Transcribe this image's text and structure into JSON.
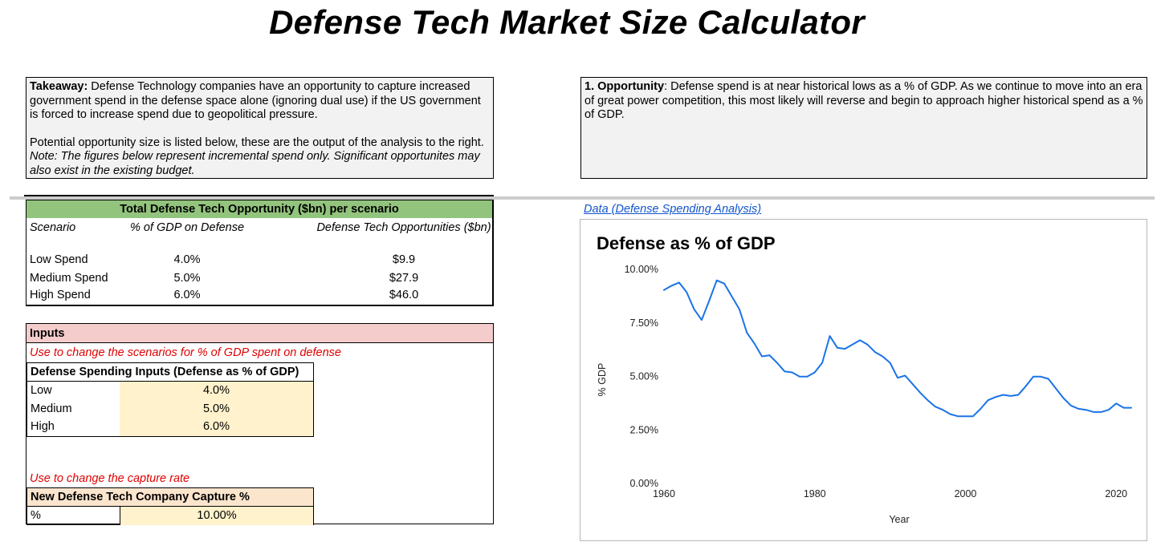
{
  "title": "Defense Tech Market Size Calculator",
  "takeaway": {
    "label": "Takeaway:",
    "text": " Defense Technology companies have an opportunity to capture increased government spend in the defense space alone (ignoring dual use) if the US government is forced to increase spend due to geopolitical pressure.",
    "para2": "Potential opportunity size is listed below, these are the output of the analysis to the right.",
    "note": "Note: The figures below represent incremental spend only. Significant opportunites may also exist in the existing budget."
  },
  "opportunity": {
    "label": "1. Opportunity",
    "text": ": Defense spend is at near historical lows as a % of GDP. As we continue to move into an era of great power competition, this most likely will reverse and begin to approach higher historical spend as a % of GDP."
  },
  "opportunity_table": {
    "header": "Total Defense Tech Opportunity ($bn) per scenario",
    "columns": [
      "Scenario",
      "% of GDP on Defense",
      "Defense Tech Opportunities ($bn)"
    ],
    "rows": [
      {
        "scenario": "Low Spend",
        "pct": "4.0%",
        "opp": "$9.9"
      },
      {
        "scenario": "Medium Spend",
        "pct": "5.0%",
        "opp": "$27.9"
      },
      {
        "scenario": "High Spend",
        "pct": "6.0%",
        "opp": "$46.0"
      }
    ]
  },
  "inputs": {
    "header": "Inputs",
    "note1": "Use to change the scenarios for % of GDP spent on defense",
    "spending_header": "Defense Spending Inputs (Defense as % of GDP)",
    "spending_rows": [
      {
        "label": "Low",
        "value": "4.0%"
      },
      {
        "label": "Medium",
        "value": "5.0%"
      },
      {
        "label": "High",
        "value": "6.0%"
      }
    ],
    "note2": "Use to change the capture rate",
    "capture_header": "New Defense Tech Company Capture %",
    "capture_label": "%",
    "capture_value": "10.00%"
  },
  "data_link": "Data (Defense Spending Analysis)",
  "colors": {
    "header_green": "#93c47d",
    "inputs_pink": "#f4cccc",
    "input_yellow": "#fff2cc",
    "red_note": "#e00000",
    "line_blue": "#1a73e8",
    "link_blue": "#1155cc"
  },
  "chart_data": {
    "type": "line",
    "title": "Defense as % of GDP",
    "xlabel": "Year",
    "ylabel": "% GDP",
    "xlim": [
      1960,
      2022
    ],
    "ylim": [
      0,
      10
    ],
    "x_ticks": [
      "1960",
      "1980",
      "2000",
      "2020"
    ],
    "y_ticks": [
      "0.00%",
      "2.50%",
      "5.00%",
      "7.50%",
      "10.00%"
    ],
    "grid": false,
    "series": [
      {
        "x": [
          1960,
          1961,
          1962,
          1963,
          1964,
          1965,
          1966,
          1967,
          1968,
          1969,
          1970,
          1971,
          1972,
          1973,
          1974,
          1975,
          1976,
          1977,
          1978,
          1979,
          1980,
          1981,
          1982,
          1983,
          1984,
          1985,
          1986,
          1987,
          1988,
          1989,
          1990,
          1991,
          1992,
          1993,
          1994,
          1995,
          1996,
          1997,
          1998,
          1999,
          2000,
          2001,
          2002,
          2003,
          2004,
          2005,
          2006,
          2007,
          2008,
          2009,
          2010,
          2011,
          2012,
          2013,
          2014,
          2015,
          2016,
          2017,
          2018,
          2019,
          2020,
          2021,
          2022
        ],
        "values": [
          9.0,
          9.2,
          9.35,
          8.9,
          8.1,
          7.6,
          8.5,
          9.45,
          9.3,
          8.7,
          8.1,
          7.0,
          6.5,
          5.9,
          5.95,
          5.6,
          5.2,
          5.15,
          4.95,
          4.95,
          5.15,
          5.6,
          6.85,
          6.3,
          6.25,
          6.45,
          6.65,
          6.45,
          6.1,
          5.9,
          5.6,
          4.9,
          5.0,
          4.6,
          4.2,
          3.85,
          3.55,
          3.4,
          3.2,
          3.1,
          3.1,
          3.1,
          3.45,
          3.85,
          4.0,
          4.1,
          4.05,
          4.1,
          4.5,
          4.95,
          4.95,
          4.85,
          4.4,
          3.95,
          3.6,
          3.45,
          3.4,
          3.3,
          3.3,
          3.4,
          3.7,
          3.5,
          3.5
        ]
      }
    ]
  }
}
